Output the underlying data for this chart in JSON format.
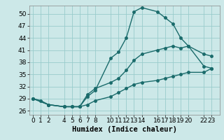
{
  "xlabel": "Humidex (Indice chaleur)",
  "background_color": "#cce8e8",
  "line_color": "#1a6b6b",
  "grid_color": "#99cccc",
  "ylim": [
    25,
    52
  ],
  "xlim": [
    -0.5,
    24
  ],
  "yticks": [
    26,
    29,
    32,
    35,
    38,
    41,
    44,
    47,
    50
  ],
  "xticks": [
    0,
    1,
    2,
    4,
    5,
    6,
    7,
    8,
    10,
    11,
    12,
    13,
    14,
    16,
    17,
    18,
    19,
    20,
    22,
    23
  ],
  "line1_x": [
    0,
    1,
    2,
    4,
    5,
    6,
    7,
    8,
    10,
    11,
    12,
    13,
    14,
    16,
    17,
    18,
    19,
    20,
    22,
    23
  ],
  "line1_y": [
    29,
    28.5,
    27.5,
    27,
    27,
    27,
    29.5,
    31,
    39,
    40.5,
    44,
    50.5,
    51.5,
    50.5,
    49,
    47.5,
    44,
    42,
    40,
    39.5
  ],
  "line2_x": [
    0,
    2,
    4,
    5,
    6,
    7,
    8,
    10,
    11,
    12,
    13,
    14,
    16,
    17,
    18,
    19,
    20,
    22,
    23
  ],
  "line2_y": [
    29,
    27.5,
    27,
    27,
    27,
    30,
    31.5,
    33,
    34,
    36,
    38.5,
    40,
    41,
    41.5,
    42,
    41.5,
    42,
    37,
    36.5
  ],
  "line3_x": [
    0,
    2,
    4,
    5,
    6,
    7,
    8,
    10,
    11,
    12,
    13,
    14,
    16,
    17,
    18,
    19,
    20,
    22,
    23
  ],
  "line3_y": [
    29,
    27.5,
    27,
    27,
    27,
    27.5,
    28.5,
    29.5,
    30.5,
    31.5,
    32.5,
    33,
    33.5,
    34,
    34.5,
    35,
    35.5,
    35.5,
    36.5
  ],
  "marker_size": 2.5,
  "linewidth": 1.0,
  "tick_fontsize": 6.5,
  "xlabel_fontsize": 7.5
}
